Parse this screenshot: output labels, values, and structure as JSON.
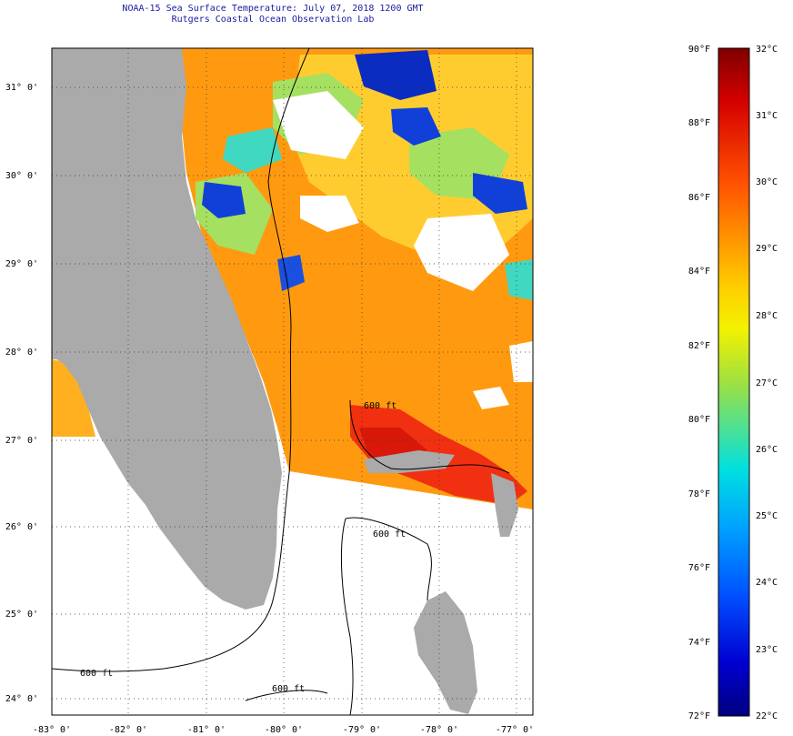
{
  "title": {
    "line1": "NOAA-15 Sea Surface Temperature:  July 07, 2018 1200 GMT",
    "line2": "Rutgers Coastal Ocean Observation Lab"
  },
  "map": {
    "lat_labels": [
      "31° 0'",
      "30° 0'",
      "29° 0'",
      "28° 0'",
      "27° 0'",
      "26° 0'",
      "25° 0'",
      "24° 0'"
    ],
    "lon_labels": [
      "-83° 0'",
      "-82° 0'",
      "-81° 0'",
      "-80° 0'",
      "-79° 0'",
      "-78° 0'",
      "-77° 0'"
    ],
    "contour_labels": [
      "600 ft",
      "600 ft",
      "600 ft",
      "600 ft"
    ],
    "colors": {
      "land": "#aaaaaa",
      "no_data": "#ffffff",
      "contour": "#000000",
      "grid": "#333333"
    }
  },
  "colorbar": {
    "fahrenheit_labels": [
      "90°F",
      "88°F",
      "86°F",
      "84°F",
      "82°F",
      "80°F",
      "78°F",
      "76°F",
      "74°F",
      "72°F"
    ],
    "celsius_labels": [
      "32°C",
      "31°C",
      "30°C",
      "29°C",
      "28°C",
      "27°C",
      "26°C",
      "25°C",
      "24°C",
      "23°C",
      "22°C"
    ],
    "colors_top_to_bottom": [
      "#7f0000",
      "#d40000",
      "#ff5000",
      "#ff9000",
      "#ffcf00",
      "#f2f200",
      "#a0e040",
      "#40e0a0",
      "#00e0e0",
      "#00a0ff",
      "#0050ff",
      "#0000d0",
      "#000080"
    ]
  }
}
